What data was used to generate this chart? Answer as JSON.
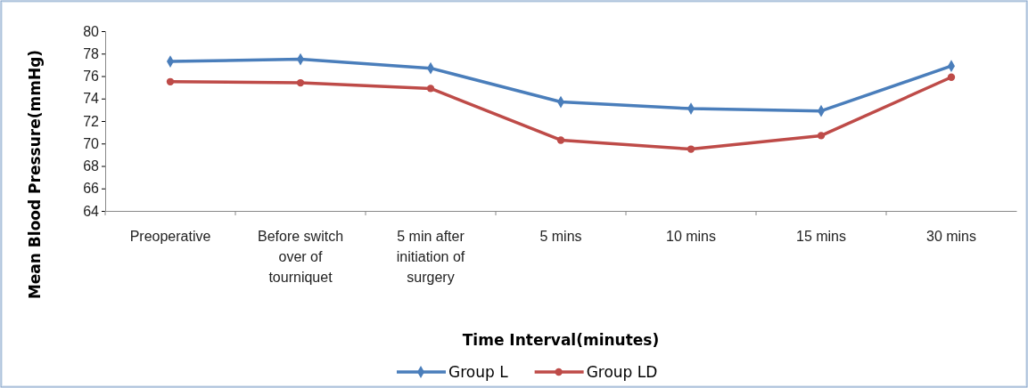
{
  "chart_data": {
    "type": "line",
    "xlabel": "Time Interval(minutes)",
    "ylabel": "Mean Blood Pressure(mmHg)",
    "categories": [
      "Preoperative",
      "Before switch over of tourniquet",
      "5 min after initiation of surgery",
      "5 mins",
      "10 mins",
      "15 mins",
      "30 mins"
    ],
    "series": [
      {
        "name": "Group L",
        "color": "#4a7ebb",
        "marker": "diamond",
        "values": [
          77.3,
          77.5,
          76.7,
          73.7,
          73.1,
          72.9,
          76.9
        ]
      },
      {
        "name": "Group LD",
        "color": "#be4b48",
        "marker": "circle",
        "values": [
          75.5,
          75.4,
          74.9,
          70.3,
          69.5,
          70.7,
          75.9
        ]
      }
    ],
    "ylim": [
      64,
      80
    ],
    "yticks": [
      64,
      66,
      68,
      70,
      72,
      74,
      76,
      78,
      80
    ],
    "legend": "bottom"
  }
}
